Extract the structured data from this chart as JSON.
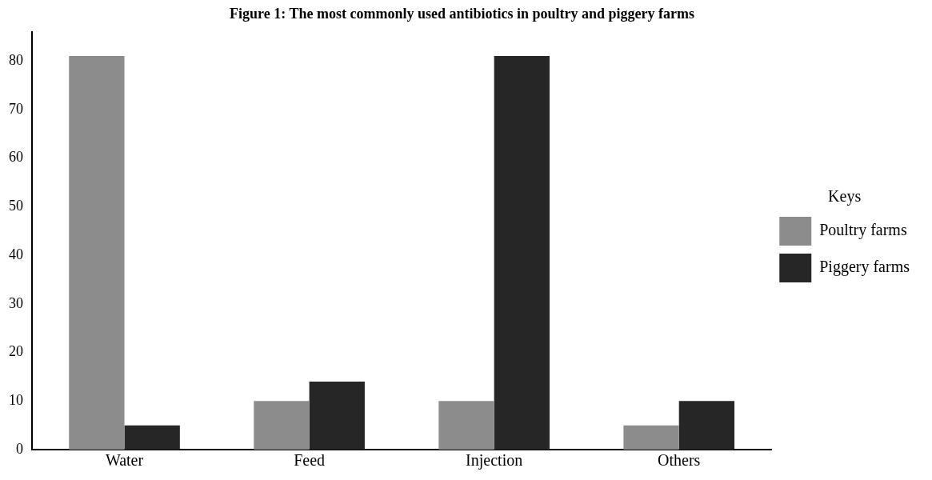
{
  "chart_data": {
    "type": "bar",
    "title": "Figure 1: The most commonly used antibiotics in poultry and piggery farms",
    "categories": [
      "Water",
      "Feed",
      "Injection",
      "Others"
    ],
    "series": [
      {
        "name": "Poultry farms",
        "color": "#8c8c8c",
        "values": [
          81,
          10,
          10,
          5
        ]
      },
      {
        "name": "Piggery farms",
        "color": "#262626",
        "values": [
          5,
          14,
          81,
          10
        ]
      }
    ],
    "ylim": [
      0,
      86
    ],
    "yticks": [
      0,
      10,
      20,
      30,
      40,
      50,
      60,
      70,
      80
    ],
    "grid": false,
    "legend": "right",
    "legend_title": "Keys"
  }
}
